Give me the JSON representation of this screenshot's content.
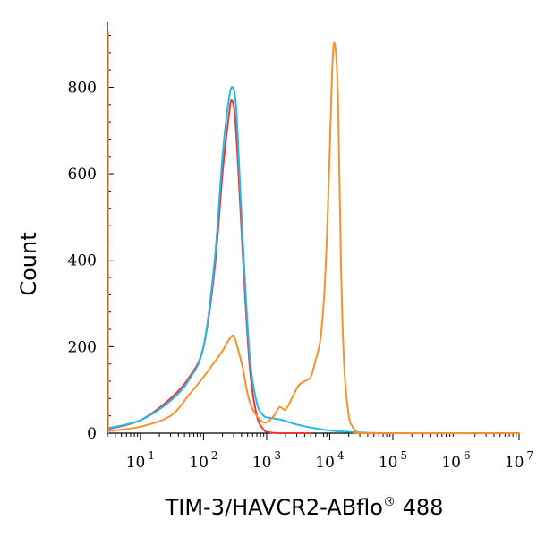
{
  "chart_data": {
    "type": "line",
    "title": "",
    "xlabel": "TIM-3/HAVCR2-ABflo",
    "xlabel_superscript": "®",
    "xlabel_suffix": "488",
    "ylabel": "Count",
    "x_scale": "log",
    "xlim": [
      3,
      10000000
    ],
    "ylim": [
      0,
      950
    ],
    "grid": false,
    "x_ticks": [
      {
        "base": "10",
        "exp": "1",
        "value": 10
      },
      {
        "base": "10",
        "exp": "2",
        "value": 100
      },
      {
        "base": "10",
        "exp": "3",
        "value": 1000
      },
      {
        "base": "10",
        "exp": "4",
        "value": 10000
      },
      {
        "base": "10",
        "exp": "5",
        "value": 100000
      },
      {
        "base": "10",
        "exp": "6",
        "value": 1000000
      },
      {
        "base": "10",
        "exp": "7",
        "value": 10000000
      }
    ],
    "y_ticks": [
      {
        "label": "0",
        "value": 0
      },
      {
        "label": "200",
        "value": 200
      },
      {
        "label": "400",
        "value": 400
      },
      {
        "label": "600",
        "value": 600
      },
      {
        "label": "800",
        "value": 800
      }
    ],
    "series": [
      {
        "color": "#e8393a",
        "x": [
          3.2,
          10,
          30,
          60,
          100,
          150,
          200,
          250,
          280,
          320,
          380,
          450,
          550,
          700,
          900,
          1100,
          1500,
          2000,
          5000
        ],
        "y": [
          10,
          30,
          80,
          130,
          200,
          380,
          600,
          730,
          770,
          720,
          530,
          330,
          140,
          40,
          8,
          2,
          0,
          0,
          0
        ]
      },
      {
        "color": "#25b8e6",
        "x": [
          3.2,
          10,
          30,
          60,
          100,
          150,
          200,
          250,
          290,
          330,
          380,
          450,
          550,
          700,
          900,
          1200,
          1800,
          3000,
          8000,
          20000,
          100000,
          10000000
        ],
        "y": [
          12,
          30,
          75,
          125,
          200,
          400,
          640,
          770,
          800,
          750,
          570,
          360,
          165,
          70,
          40,
          35,
          30,
          20,
          8,
          3,
          0,
          0
        ]
      },
      {
        "color": "#f5912e",
        "x": [
          3.2,
          10,
          30,
          60,
          100,
          150,
          200,
          250,
          300,
          350,
          420,
          500,
          600,
          800,
          1000,
          1300,
          1600,
          2000,
          2600,
          3200,
          4000,
          5000,
          6000,
          7000,
          8000,
          9000,
          10000,
          11000,
          12000,
          13500,
          15000,
          17000,
          20000,
          23000,
          26000,
          30000,
          40000,
          10000000
        ],
        "y": [
          5,
          15,
          40,
          90,
          130,
          165,
          190,
          215,
          225,
          195,
          150,
          90,
          55,
          30,
          25,
          40,
          60,
          55,
          85,
          110,
          120,
          130,
          170,
          210,
          300,
          450,
          650,
          850,
          900,
          780,
          400,
          150,
          40,
          15,
          5,
          0,
          0,
          0
        ]
      }
    ]
  }
}
